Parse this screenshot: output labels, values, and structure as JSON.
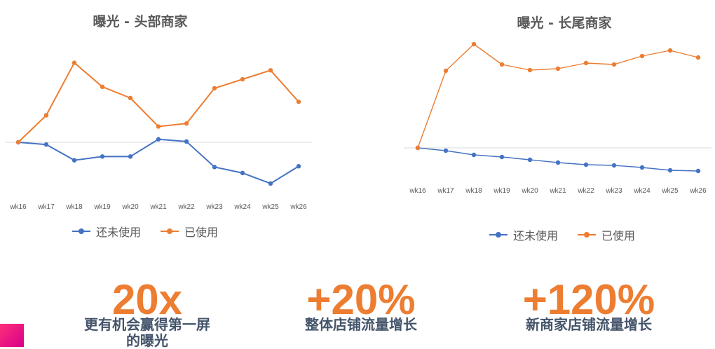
{
  "colors": {
    "not_used": "#4472C4",
    "used": "#ED7D31",
    "baseline": "#D9D9D9"
  },
  "chart_data": [
    {
      "type": "line",
      "title": "曝光 - 头部商家",
      "categories": [
        "wk16",
        "wk17",
        "wk18",
        "wk19",
        "wk20",
        "wk21",
        "wk22",
        "wk23",
        "wk24",
        "wk25",
        "wk26"
      ],
      "ylim": [
        -6,
        11
      ],
      "baseline": 0,
      "legend_position": "bottom",
      "series": [
        {
          "name": "还未使用",
          "color": "#4472C4",
          "values": [
            0,
            -0.3,
            -2.4,
            -1.9,
            -1.9,
            0.4,
            0.1,
            -3.3,
            -4.1,
            -5.5,
            -3.2
          ]
        },
        {
          "name": "已使用",
          "color": "#ED7D31",
          "values": [
            0,
            3.6,
            10.6,
            7.4,
            5.9,
            2.1,
            2.5,
            7.2,
            8.4,
            9.6,
            5.4
          ]
        }
      ]
    },
    {
      "type": "line",
      "title": "曝光 - 长尾商家",
      "categories": [
        "wk16",
        "wk17",
        "wk18",
        "wk19",
        "wk20",
        "wk21",
        "wk22",
        "wk23",
        "wk24",
        "wk25",
        "wk26"
      ],
      "ylim": [
        -30,
        140
      ],
      "baseline": 0,
      "legend_position": "bottom",
      "series": [
        {
          "name": "还未使用",
          "color": "#4472C4",
          "values": [
            0,
            -4,
            -10,
            -13,
            -17,
            -21,
            -24,
            -25,
            -28,
            -32,
            -33
          ]
        },
        {
          "name": "已使用",
          "color": "#ED7D31",
          "values": [
            0,
            110,
            148,
            119,
            111,
            113,
            121,
            119,
            131,
            139,
            129
          ]
        }
      ]
    }
  ],
  "legend": {
    "not_used": "还未使用",
    "used": "已使用"
  },
  "stats": [
    {
      "value": "20x",
      "label": "更有机会赢得第一屏的曝光"
    },
    {
      "value": "+20%",
      "label": "整体店铺流量增长"
    },
    {
      "value": "+120%",
      "label": "新商家店铺流量增长"
    }
  ]
}
